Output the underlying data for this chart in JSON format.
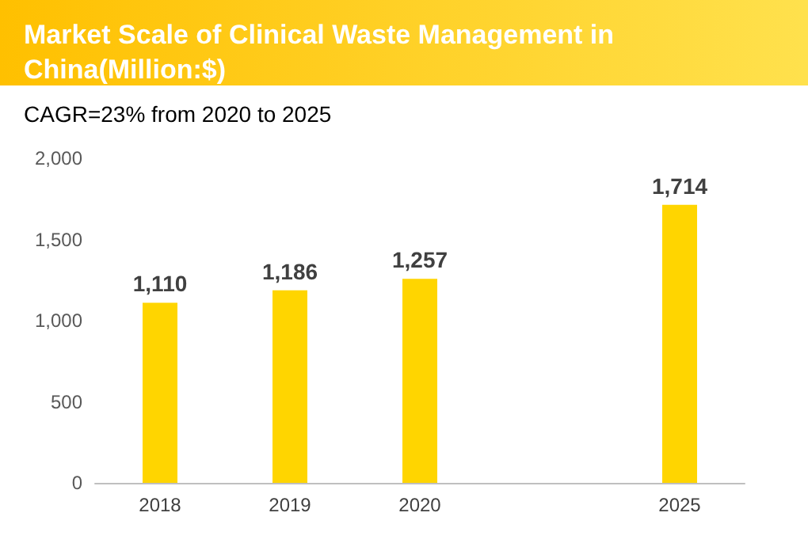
{
  "chart_data": {
    "type": "bar",
    "title": "Market Scale of Clinical Waste Management in China(Million:$)",
    "subtitle": "CAGR=23% from 2020 to 2025",
    "categories": [
      "2018",
      "2019",
      "2020",
      null,
      "2025"
    ],
    "values": [
      1110,
      1186,
      1257,
      null,
      1714
    ],
    "value_labels": [
      "1,110",
      "1,186",
      "1,257",
      null,
      "1,714"
    ],
    "color": "#ffd500",
    "ylim": [
      0,
      2000
    ],
    "yticks": [
      0,
      500,
      {
        "value": 1000,
        "label": "1,000"
      },
      {
        "value": 1500,
        "label": "1,500"
      },
      {
        "value": 2000,
        "label": "2,000"
      }
    ],
    "grid": false
  }
}
